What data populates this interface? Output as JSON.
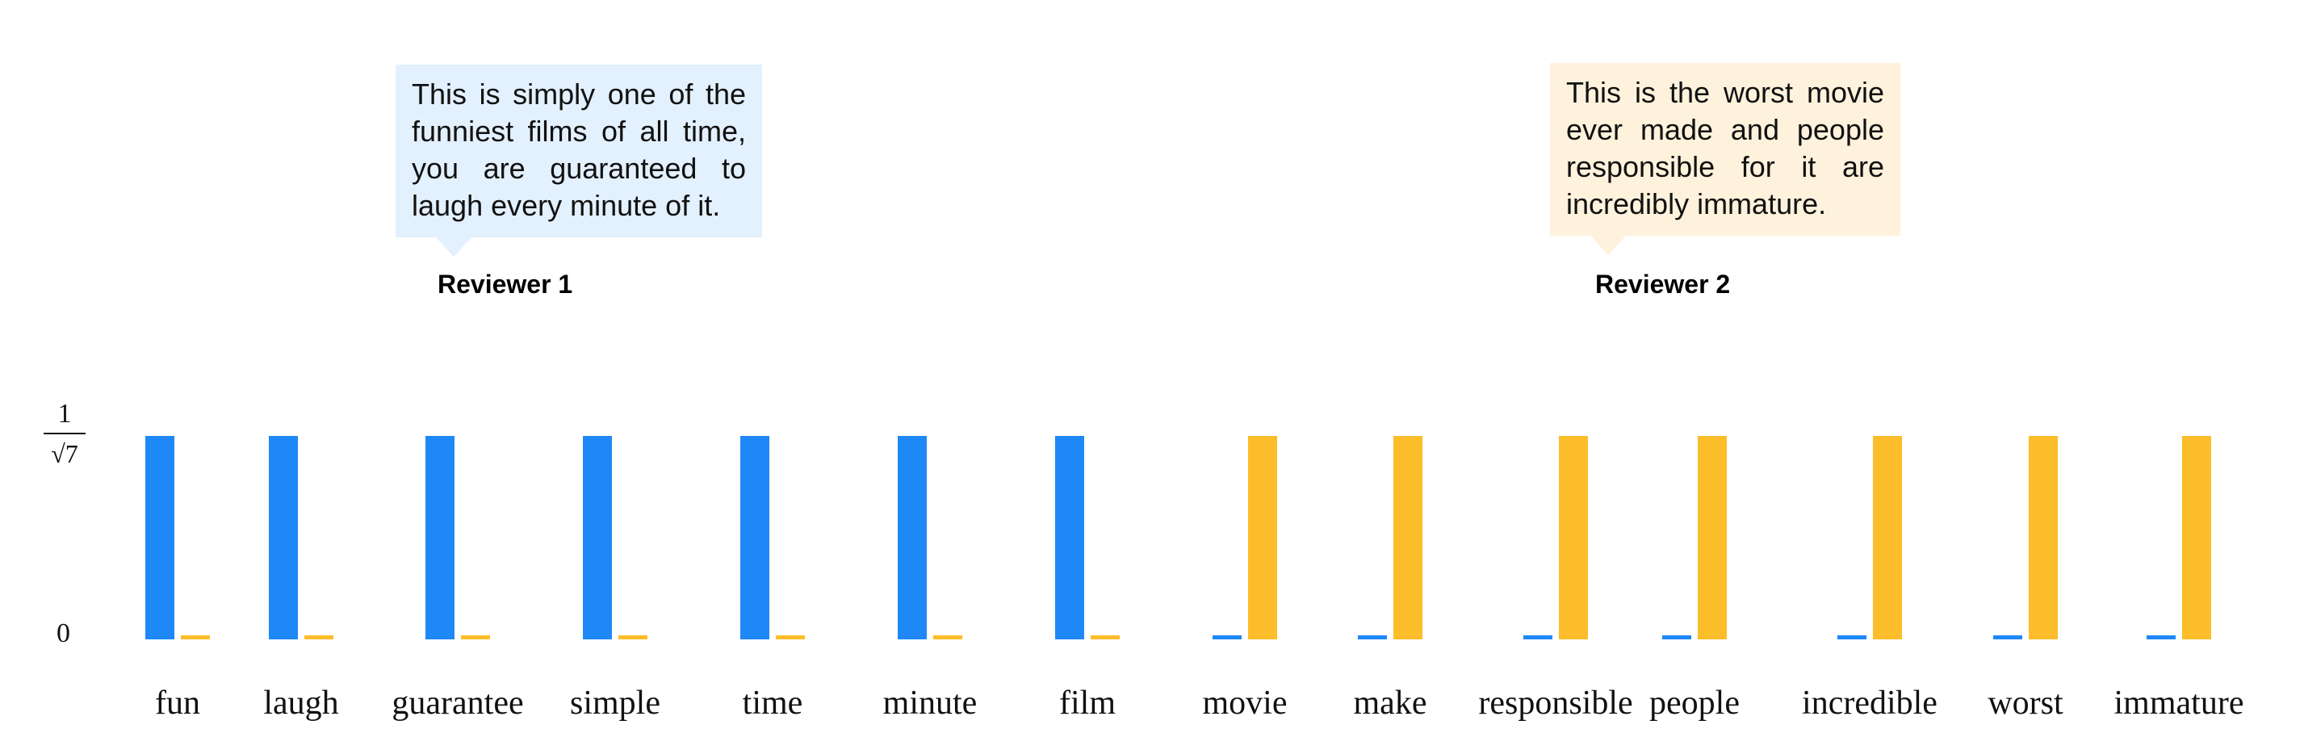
{
  "reviewers": [
    {
      "name": "Reviewer 1",
      "review": "This is simply one of the funniest films of all time, you are guaranteed to laugh every minute of it.",
      "color": "#e3f0fd"
    },
    {
      "name": "Reviewer 2",
      "review": "This is the worst movie ever made and people responsible for it are incredibly immature.",
      "color": "#fef2dc"
    }
  ],
  "y_ticks": {
    "max_numerator": "1",
    "max_denominator": "√7",
    "zero": "0"
  },
  "chart_data": {
    "type": "bar",
    "categories": [
      "fun",
      "laugh",
      "guarantee",
      "simple",
      "time",
      "minute",
      "film",
      "movie",
      "make",
      "responsible",
      "people",
      "incredible",
      "worst",
      "immature"
    ],
    "series": [
      {
        "name": "Reviewer 1",
        "color": "#1f88f7",
        "values": [
          0.378,
          0.378,
          0.378,
          0.378,
          0.378,
          0.378,
          0.378,
          0,
          0,
          0,
          0,
          0,
          0,
          0
        ]
      },
      {
        "name": "Reviewer 2",
        "color": "#fcbd2b",
        "values": [
          0,
          0,
          0,
          0,
          0,
          0,
          0,
          0.378,
          0.378,
          0.378,
          0.378,
          0.378,
          0.378,
          0.378
        ]
      }
    ],
    "ylim": [
      0,
      0.378
    ],
    "ytick_labels": [
      "0",
      "1/√7"
    ],
    "xlabel": "",
    "ylabel": "",
    "grid": false,
    "legend": "none"
  }
}
